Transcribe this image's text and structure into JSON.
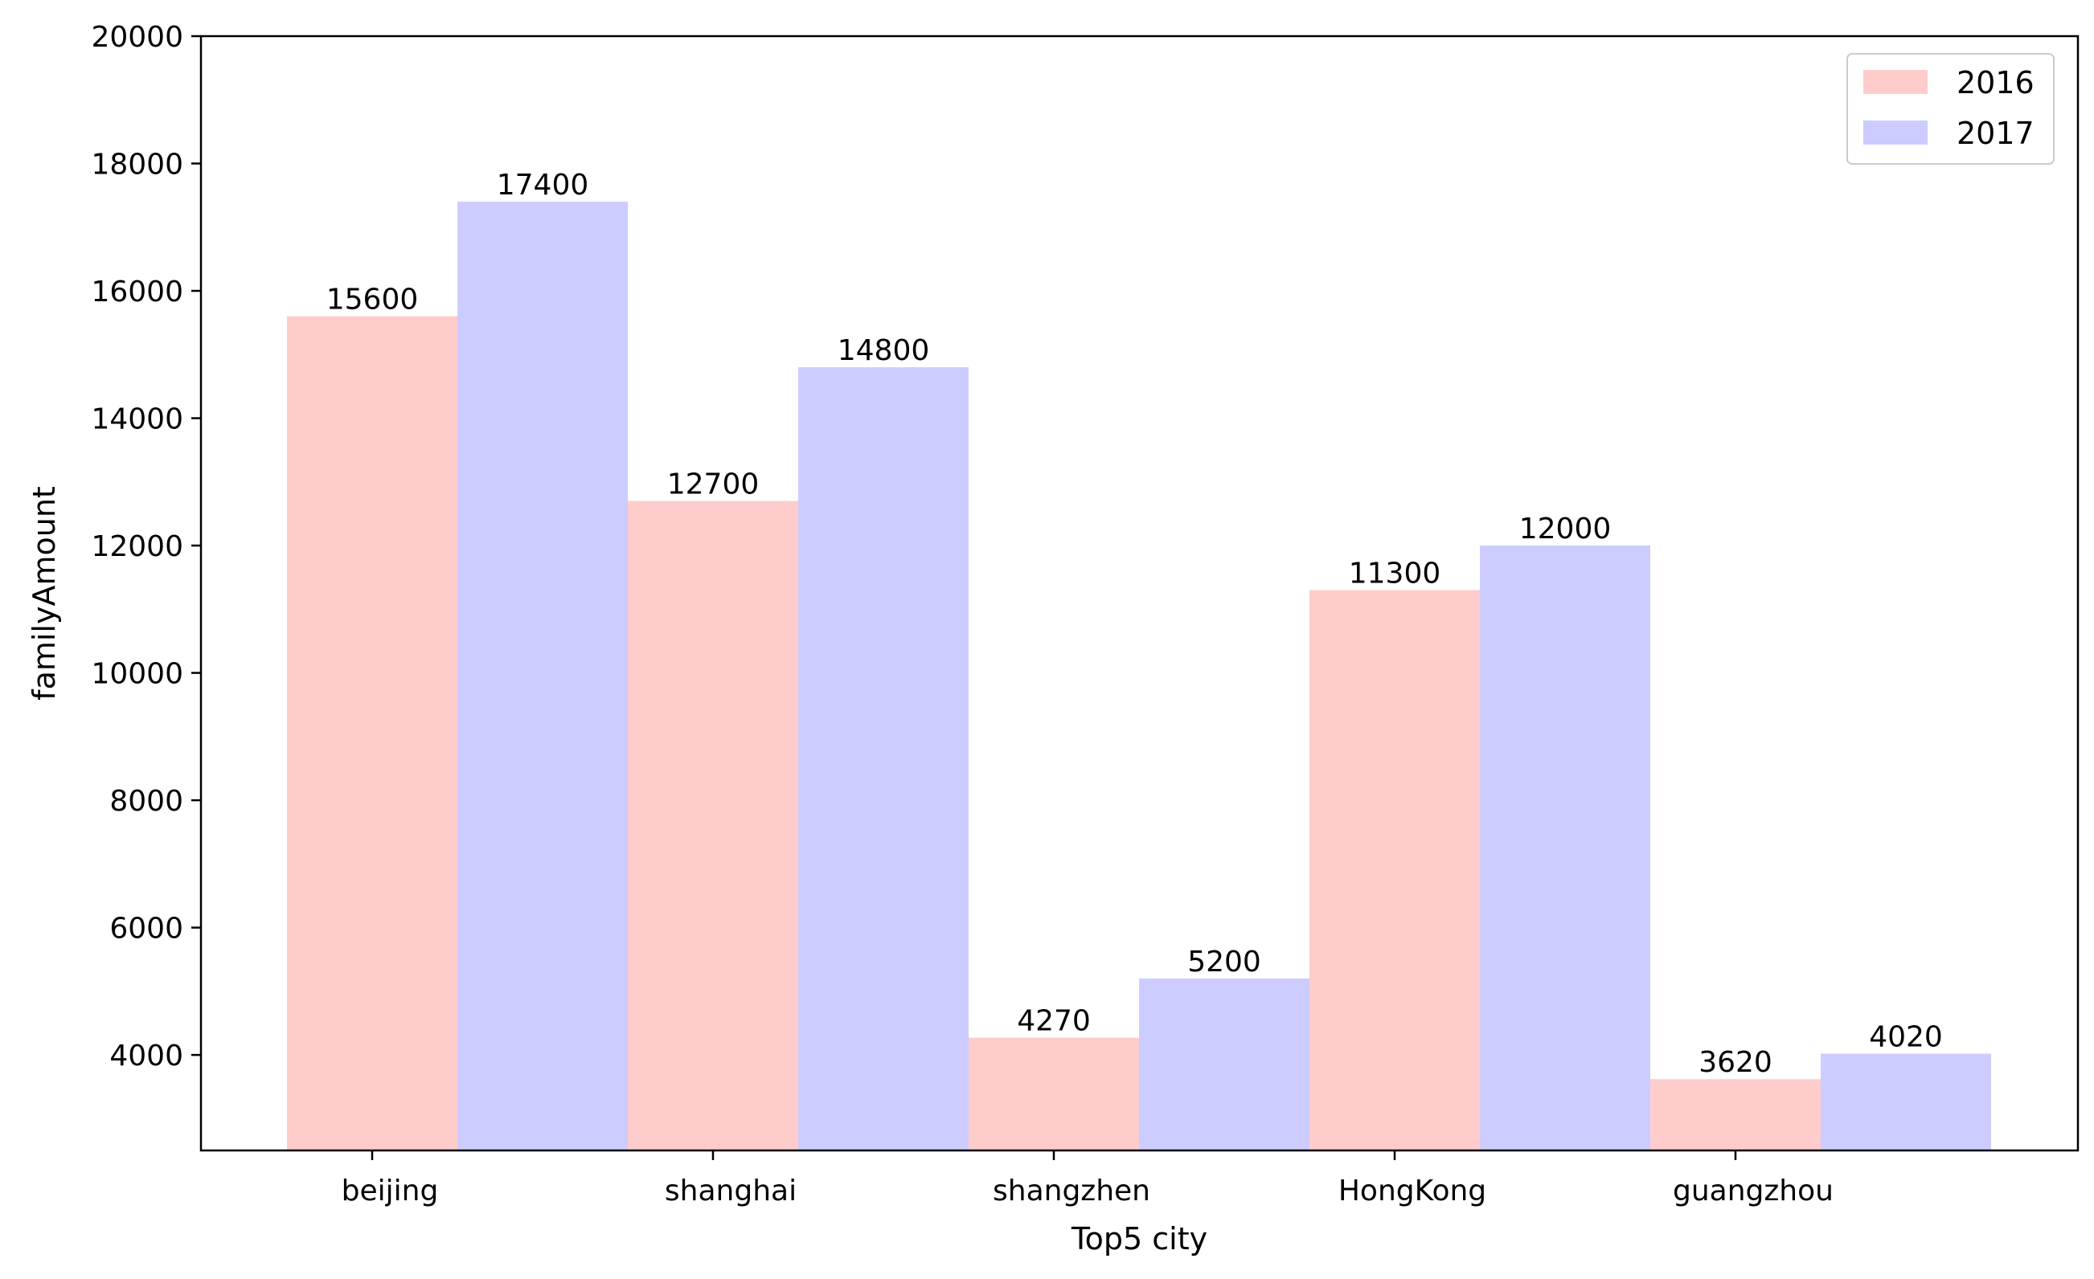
{
  "chart_data": {
    "type": "bar",
    "title": "",
    "xlabel": "Top5 city",
    "ylabel": "familyAmount",
    "categories": [
      "beijing",
      "shanghai",
      "shangzhen",
      "HongKong",
      "guangzhou"
    ],
    "series": [
      {
        "name": "2016",
        "color": "#ffcccc",
        "values": [
          15600,
          12700,
          4270,
          11300,
          3620
        ]
      },
      {
        "name": "2017",
        "color": "#ccccff",
        "values": [
          17400,
          14800,
          5200,
          12000,
          4020
        ]
      }
    ],
    "ylim": [
      2500,
      20000
    ],
    "yticks": [
      4000,
      6000,
      8000,
      10000,
      12000,
      14000,
      16000,
      18000,
      20000
    ],
    "grid": false,
    "legend_position": "top-right"
  }
}
